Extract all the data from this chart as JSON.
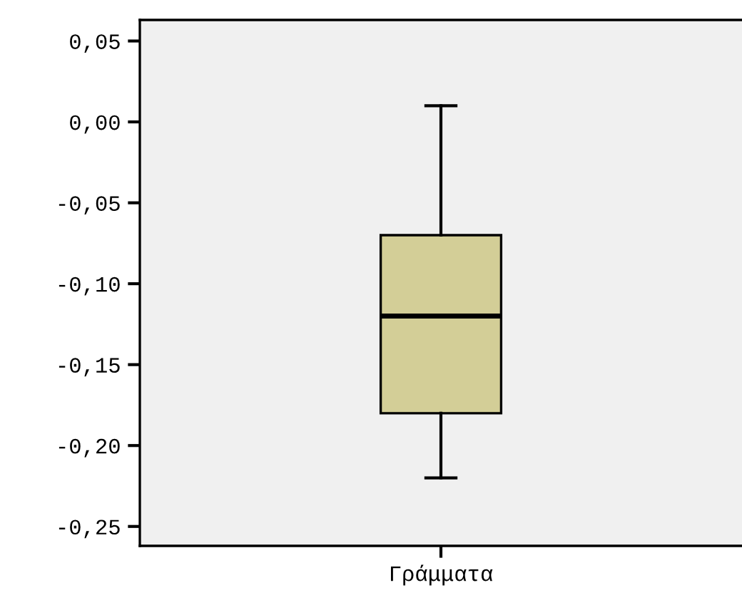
{
  "chart_data": {
    "type": "box",
    "categories": [
      "Γράμματα"
    ],
    "boxes": [
      {
        "low": -0.22,
        "q1": -0.18,
        "median": -0.12,
        "q3": -0.07,
        "high": 0.01
      }
    ],
    "color": "#d3ce97",
    "ylim": [
      -0.262,
      0.063
    ],
    "yticks": [
      {
        "value": -0.25,
        "label": "-0,25"
      },
      {
        "value": -0.2,
        "label": "-0,20"
      },
      {
        "value": -0.15,
        "label": "-0,15"
      },
      {
        "value": -0.1,
        "label": "-0,10"
      },
      {
        "value": -0.05,
        "label": "-0,05"
      },
      {
        "value": 0.0,
        "label": "0,00"
      },
      {
        "value": 0.05,
        "label": "0,05"
      }
    ],
    "grid": false
  }
}
